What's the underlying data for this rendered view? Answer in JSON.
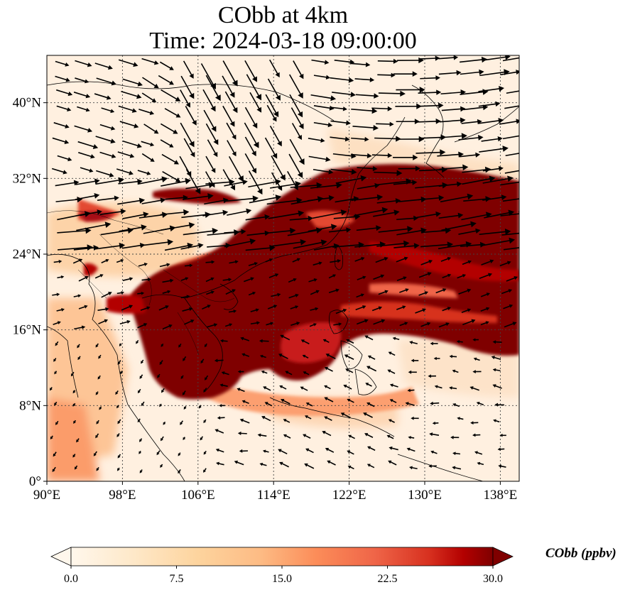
{
  "title": {
    "line1": "CObb at 4km",
    "line2": "Time: 2024-03-18 09:00:00"
  },
  "map": {
    "lon_range": [
      90,
      140
    ],
    "lat_range": [
      0,
      45
    ],
    "x_ticks": [
      "90°E",
      "98°E",
      "106°E",
      "114°E",
      "122°E",
      "130°E",
      "138°E"
    ],
    "y_ticks": [
      "0°",
      "8°N",
      "16°N",
      "24°N",
      "32°N",
      "40°N"
    ],
    "x_tick_values": [
      90,
      98,
      106,
      114,
      122,
      130,
      138
    ],
    "y_tick_values": [
      0,
      8,
      16,
      24,
      32,
      40
    ],
    "gridlines": "dotted",
    "field": "CObb concentration, high (dark red) plume from Indochina across South China Sea, Taiwan, to western Pacific; low (cream) elsewhere",
    "colors": {
      "low": "#fff5eb",
      "mid": "#fdae6b",
      "high": "#7f0000"
    }
  },
  "colorbar": {
    "label": "CObb (ppbv)",
    "ticks": [
      "0.0",
      "7.5",
      "15.0",
      "22.5",
      "30.0"
    ],
    "tick_values": [
      0.0,
      7.5,
      15.0,
      22.5,
      30.0
    ],
    "min": 0.0,
    "max": 30.0,
    "extend": "both",
    "colormap": "OrRd"
  }
}
